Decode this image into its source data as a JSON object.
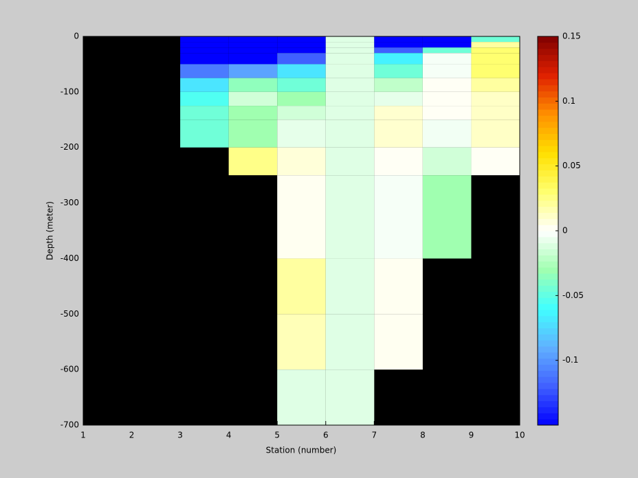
{
  "chart_data": {
    "type": "heatmap",
    "xlabel": "Station (number)",
    "ylabel": "Depth (meter)",
    "x_edges": [
      1,
      2,
      3,
      4,
      5,
      6,
      7,
      8,
      9,
      10
    ],
    "y_edges": [
      0,
      -10,
      -20,
      -30,
      -50,
      -75,
      -100,
      -125,
      -150,
      -200,
      -250,
      -400,
      -500,
      -600,
      -700
    ],
    "values": [
      [
        null,
        null,
        -0.15,
        -0.15,
        -0.15,
        -0.01,
        -0.15,
        -0.15,
        -0.045
      ],
      [
        null,
        null,
        -0.15,
        -0.15,
        -0.15,
        -0.01,
        -0.15,
        -0.15,
        0.02
      ],
      [
        null,
        null,
        -0.15,
        -0.15,
        -0.15,
        -0.01,
        -0.12,
        -0.045,
        0.03
      ],
      [
        null,
        null,
        -0.15,
        -0.15,
        -0.12,
        -0.01,
        -0.065,
        -0.003,
        0.03
      ],
      [
        null,
        null,
        -0.11,
        -0.095,
        -0.07,
        -0.01,
        -0.045,
        -0.003,
        0.03
      ],
      [
        null,
        null,
        -0.07,
        -0.035,
        -0.045,
        -0.01,
        -0.02,
        0.002,
        0.02
      ],
      [
        null,
        null,
        -0.055,
        -0.015,
        -0.03,
        -0.01,
        -0.008,
        0.002,
        0.012
      ],
      [
        null,
        null,
        -0.045,
        -0.03,
        -0.015,
        -0.01,
        0.01,
        0.002,
        0.012
      ],
      [
        null,
        null,
        -0.045,
        -0.03,
        -0.008,
        -0.01,
        0.01,
        -0.004,
        0.012
      ],
      [
        null,
        null,
        null,
        0.025,
        0.008,
        -0.01,
        0.002,
        -0.015,
        0.002
      ],
      [
        null,
        null,
        null,
        null,
        0.003,
        -0.01,
        -0.003,
        -0.03,
        null
      ],
      [
        null,
        null,
        null,
        null,
        0.02,
        -0.01,
        0.003,
        null,
        null
      ],
      [
        null,
        null,
        null,
        null,
        0.015,
        -0.01,
        0.003,
        null,
        null
      ],
      [
        null,
        null,
        null,
        null,
        -0.01,
        -0.01,
        null,
        null,
        null
      ]
    ],
    "xlim": [
      1,
      10
    ],
    "xticks": [
      1,
      2,
      3,
      4,
      5,
      6,
      7,
      8,
      9,
      10
    ],
    "ylim": [
      -700,
      0
    ],
    "yticks": [
      -700,
      -600,
      -500,
      -400,
      -300,
      -200,
      -100,
      0
    ],
    "clim": [
      -0.15,
      0.15
    ],
    "cticks": [
      -0.1,
      -0.05,
      0,
      0.05,
      0.1,
      0.15
    ],
    "colormap": [
      "#0000ff",
      "#4060ff",
      "#60b0ff",
      "#40ffff",
      "#a0ffb0",
      "#ffffff",
      "#ffff70",
      "#ffe000",
      "#ff9000",
      "#e02000",
      "#800000"
    ],
    "missing_color": "#000000"
  }
}
